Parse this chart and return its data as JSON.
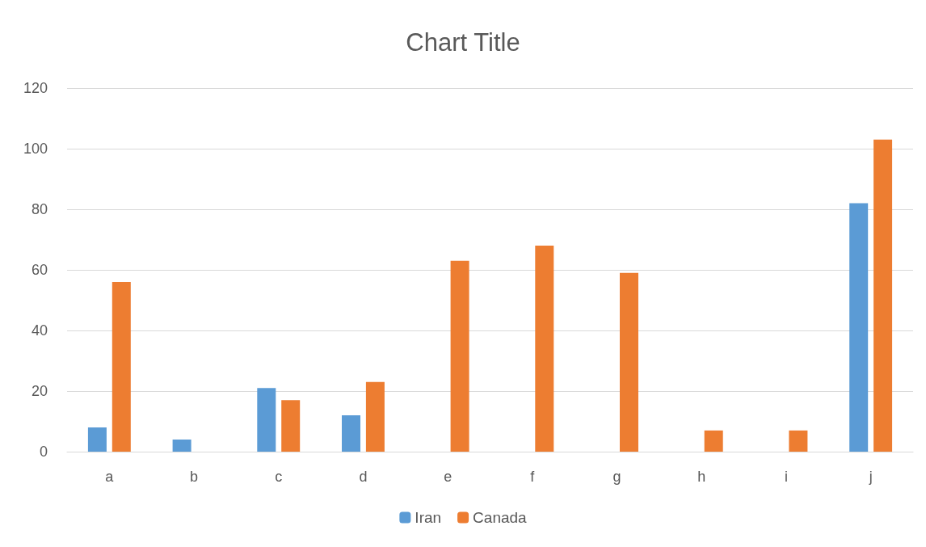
{
  "chart_data": {
    "type": "bar",
    "title": "Chart Title",
    "categories": [
      "a",
      "b",
      "c",
      "d",
      "e",
      "f",
      "g",
      "h",
      "i",
      "j"
    ],
    "series": [
      {
        "name": "Iran",
        "color": "#5b9bd5",
        "values": [
          8,
          4,
          21,
          12,
          0,
          0,
          0,
          0,
          0,
          82
        ]
      },
      {
        "name": "Canada",
        "color": "#ed7d31",
        "values": [
          56,
          0,
          17,
          23,
          63,
          68,
          59,
          7,
          7,
          103
        ]
      }
    ],
    "ylim": [
      0,
      120
    ],
    "yticks": [
      0,
      20,
      40,
      60,
      80,
      100,
      120
    ],
    "grid": "y",
    "legend": "bottom"
  }
}
